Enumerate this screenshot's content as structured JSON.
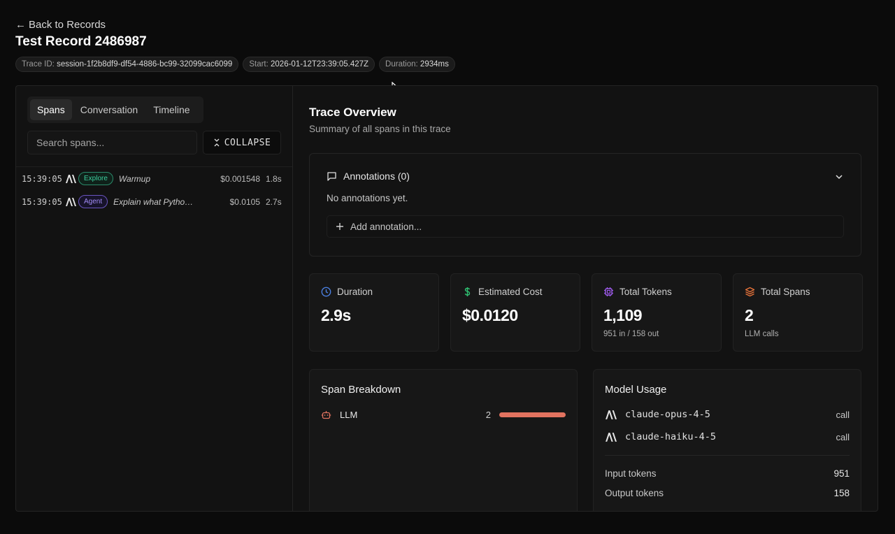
{
  "header": {
    "back_label": "Back to Records",
    "title": "Test Record 2486987",
    "trace_id_label": "Trace ID:",
    "trace_id": "session-1f2b8df9-df54-4886-bc99-32099cac6099",
    "start_label": "Start:",
    "start": "2026-01-12T23:39:05.427Z",
    "duration_label": "Duration:",
    "duration": "2934ms"
  },
  "left": {
    "tabs": [
      {
        "label": "Spans",
        "active": true
      },
      {
        "label": "Conversation",
        "active": false
      },
      {
        "label": "Timeline",
        "active": false
      }
    ],
    "search_placeholder": "Search spans...",
    "collapse_label": "COLLAPSE",
    "spans": [
      {
        "time": "15:39:05",
        "icon": "anthropic-icon",
        "badge": "Explore",
        "name": "Warmup",
        "cost": "$0.001548",
        "duration": "1.8s"
      },
      {
        "time": "15:39:05",
        "icon": "anthropic-icon",
        "badge": "Agent",
        "name": "Explain what Python ...",
        "cost": "$0.0105",
        "duration": "2.7s"
      }
    ]
  },
  "overview": {
    "title": "Trace Overview",
    "subtitle": "Summary of all spans in this trace",
    "annotations_title": "Annotations (0)",
    "annotations_empty": "No annotations yet.",
    "add_annotation": "Add annotation..."
  },
  "stats": [
    {
      "label": "Duration",
      "value": "2.9s",
      "sub": "",
      "icon": "clock-icon",
      "color": "#4a7fe0"
    },
    {
      "label": "Estimated Cost",
      "value": "$0.0120",
      "sub": "",
      "icon": "dollar-icon",
      "color": "#2fbf71"
    },
    {
      "label": "Total Tokens",
      "value": "1,109",
      "sub": "951 in / 158 out",
      "icon": "chip-icon",
      "color": "#a05cf0"
    },
    {
      "label": "Total Spans",
      "value": "2",
      "sub": "LLM calls",
      "icon": "layers-icon",
      "color": "#e8733a"
    }
  ],
  "span_breakdown": {
    "title": "Span Breakdown",
    "rows": [
      {
        "label": "LLM",
        "count": "2",
        "fraction": 1.0,
        "icon": "robot-icon",
        "color": "#e27360"
      }
    ]
  },
  "model_usage": {
    "title": "Model Usage",
    "models": [
      {
        "name": "claude-opus-4-5",
        "calls": "call",
        "icon": "anthropic-icon"
      },
      {
        "name": "claude-haiku-4-5",
        "calls": "call",
        "icon": "anthropic-icon"
      }
    ],
    "input_label": "Input tokens",
    "input_value": "951",
    "output_label": "Output tokens",
    "output_value": "158"
  }
}
